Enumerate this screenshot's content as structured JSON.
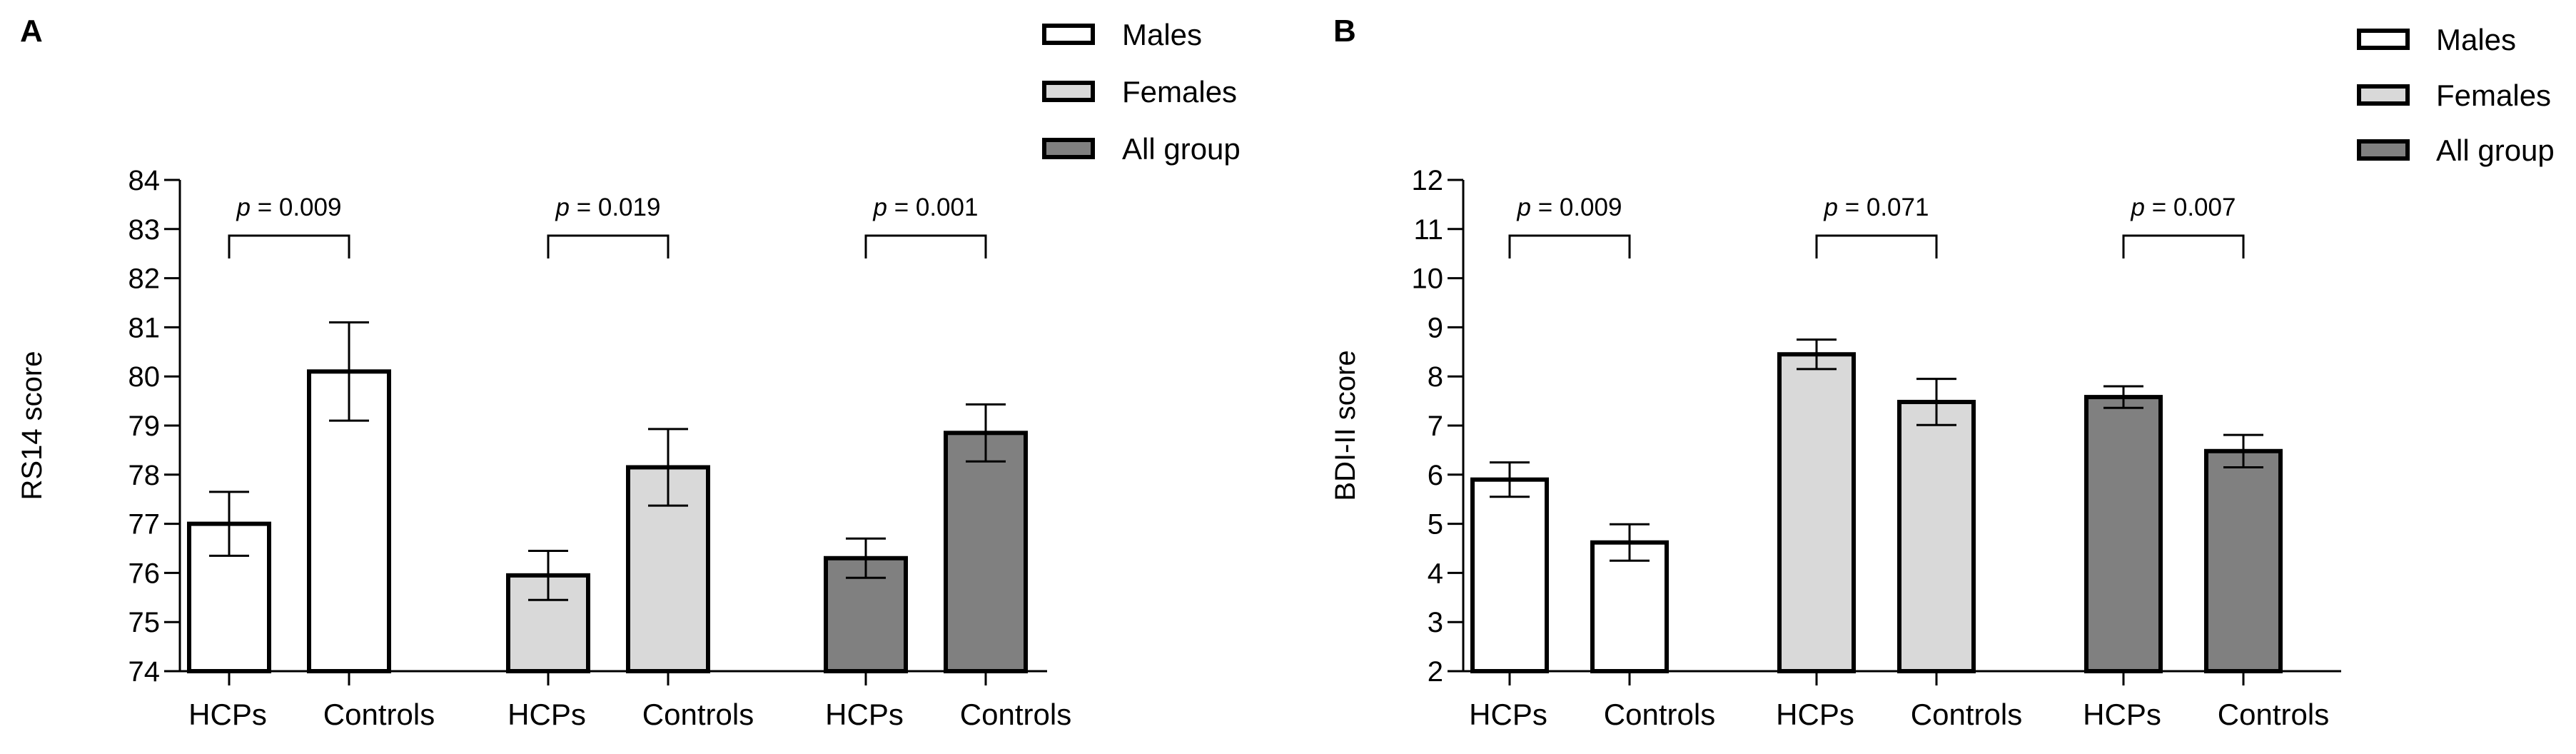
{
  "chart_data": [
    {
      "panel": "A",
      "type": "bar",
      "ylabel": "RS14 score",
      "ylim": [
        74,
        84
      ],
      "yticks": [
        74,
        75,
        76,
        77,
        78,
        79,
        80,
        81,
        82,
        83,
        84
      ],
      "categories": [
        "HCPs",
        "Controls"
      ],
      "groups": [
        {
          "name": "Males",
          "color": "#ffffff",
          "values": [
            77.0,
            80.1
          ],
          "errors": [
            0.65,
            1.0
          ],
          "p_label": "p = 0.009"
        },
        {
          "name": "Females",
          "color": "#d9d9d9",
          "values": [
            75.95,
            78.15
          ],
          "errors": [
            0.5,
            0.78
          ],
          "p_label": "p = 0.019"
        },
        {
          "name": "All group",
          "color": "#808080",
          "values": [
            76.3,
            78.85
          ],
          "errors": [
            0.4,
            0.58
          ],
          "p_label": "p = 0.001"
        }
      ],
      "legend": [
        "Males",
        "Females",
        "All group"
      ],
      "legend_position": "top-right"
    },
    {
      "panel": "B",
      "type": "bar",
      "ylabel": "BDI-II score",
      "ylim": [
        2,
        12
      ],
      "yticks": [
        2,
        3,
        4,
        5,
        6,
        7,
        8,
        9,
        10,
        11,
        12
      ],
      "categories": [
        "HCPs",
        "Controls"
      ],
      "groups": [
        {
          "name": "Males",
          "color": "#ffffff",
          "values": [
            5.9,
            4.62
          ],
          "errors": [
            0.35,
            0.37
          ],
          "p_label": "p = 0.009"
        },
        {
          "name": "Females",
          "color": "#d9d9d9",
          "values": [
            8.45,
            7.48
          ],
          "errors": [
            0.3,
            0.47
          ],
          "p_label": "p = 0.071"
        },
        {
          "name": "All group",
          "color": "#808080",
          "values": [
            7.58,
            6.48
          ],
          "errors": [
            0.22,
            0.33
          ],
          "p_label": "p = 0.007"
        }
      ],
      "legend": [
        "Males",
        "Females",
        "All group"
      ],
      "legend_position": "top-right"
    }
  ]
}
